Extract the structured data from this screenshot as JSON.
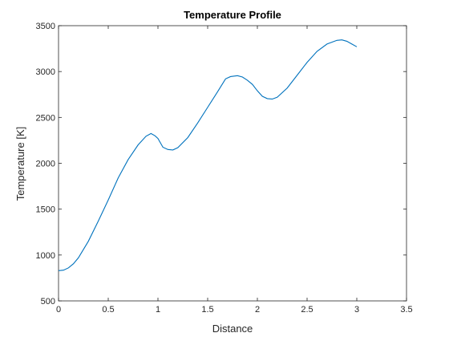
{
  "chart_data": {
    "type": "line",
    "title": "Temperature Profile",
    "xlabel": "Distance",
    "ylabel": "Temperature [K]",
    "xlim": [
      0,
      3.5
    ],
    "ylim": [
      500,
      3500
    ],
    "xticks": [
      0,
      0.5,
      1,
      1.5,
      2,
      2.5,
      3,
      3.5
    ],
    "xtick_labels": [
      "0",
      "0.5",
      "1",
      "1.5",
      "2",
      "2.5",
      "3",
      "3.5"
    ],
    "yticks": [
      500,
      1000,
      1500,
      2000,
      2500,
      3000,
      3500
    ],
    "ytick_labels": [
      "500",
      "1000",
      "1500",
      "2000",
      "2500",
      "3000",
      "3500"
    ],
    "grid": false,
    "series_color": "#0072BD",
    "series": [
      {
        "x": [
          0,
          0.05,
          0.1,
          0.15,
          0.2,
          0.3,
          0.4,
          0.5,
          0.6,
          0.7,
          0.8,
          0.88,
          0.93,
          0.97,
          1.0,
          1.05,
          1.1,
          1.15,
          1.2,
          1.3,
          1.4,
          1.5,
          1.6,
          1.68,
          1.73,
          1.8,
          1.85,
          1.9,
          1.95,
          2.0,
          2.05,
          2.1,
          2.15,
          2.2,
          2.3,
          2.4,
          2.5,
          2.6,
          2.7,
          2.8,
          2.85,
          2.9,
          2.95,
          3.0
        ],
        "y": [
          830,
          835,
          860,
          905,
          970,
          1150,
          1370,
          1600,
          1840,
          2040,
          2200,
          2295,
          2325,
          2300,
          2270,
          2175,
          2150,
          2145,
          2170,
          2280,
          2440,
          2610,
          2780,
          2920,
          2945,
          2955,
          2940,
          2905,
          2860,
          2790,
          2730,
          2705,
          2700,
          2720,
          2820,
          2960,
          3100,
          3220,
          3300,
          3340,
          3345,
          3330,
          3300,
          3270
        ]
      }
    ]
  }
}
